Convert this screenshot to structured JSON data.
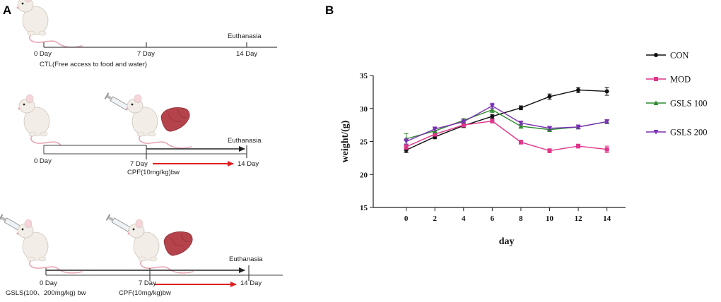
{
  "panels": {
    "a_label": "A",
    "b_label": "B"
  },
  "timeline1": {
    "start_label": "0 Day",
    "mid_label": "7 Day",
    "end_label": "14 Day",
    "event_label": "Euthanasia",
    "caption": "CTL(Free access to food and water)"
  },
  "timeline2": {
    "start_label": "0 Day",
    "mid_label": "7 Day",
    "end_label": "14 Day",
    "event_label": "Euthanasia",
    "treatment": "CPF(10mg/kg)bw"
  },
  "timeline3": {
    "start_label": "0 Day",
    "mid_label": "7 Day",
    "end_label": "14 Day",
    "event_label": "Euthanasia",
    "pretreatment": "GSLS(100、200mg/kg) bw",
    "treatment": "CPF(10mg/kg)bw"
  },
  "colors": {
    "con": "#111111",
    "mod": "#e0368a",
    "gsls100": "#2e8b2e",
    "gsls200": "#7a2fb5",
    "arrow_red": "#e02020",
    "timeline": "#444444",
    "mouse": "#f2ede6",
    "tail": "#e8a6b4",
    "liver": "#b5434b"
  },
  "chart_data": {
    "type": "line",
    "title": "",
    "xlabel": "day",
    "ylabel": "weight/(g)",
    "x": [
      0,
      2,
      4,
      6,
      8,
      10,
      12,
      14
    ],
    "xlim": [
      -2.3,
      15.3
    ],
    "ylim": [
      15,
      35
    ],
    "xticks": [
      0,
      2,
      4,
      6,
      8,
      10,
      12,
      14
    ],
    "yticks": [
      15,
      20,
      25,
      30,
      35
    ],
    "grid": false,
    "legend_position": "right",
    "series": [
      {
        "name": "CON",
        "marker": "circle",
        "color": "#111111",
        "values": [
          23.7,
          25.7,
          27.4,
          28.8,
          30.1,
          31.8,
          32.8,
          32.6
        ],
        "errors": [
          0.4,
          0.3,
          0.3,
          0.3,
          0.3,
          0.4,
          0.4,
          0.6
        ]
      },
      {
        "name": "MOD",
        "marker": "square",
        "color": "#e0368a",
        "values": [
          24.2,
          26.1,
          27.5,
          28.1,
          24.9,
          23.6,
          24.3,
          23.8
        ],
        "errors": [
          0.4,
          0.3,
          0.3,
          0.3,
          0.3,
          0.3,
          0.3,
          0.5
        ]
      },
      {
        "name": "GSLS 100",
        "marker": "triangle",
        "color": "#2e8b2e",
        "values": [
          25.4,
          26.6,
          28.2,
          29.8,
          27.3,
          26.8,
          27.2,
          28.0
        ],
        "errors": [
          0.8,
          0.3,
          0.3,
          0.4,
          0.3,
          0.3,
          0.3,
          0.3
        ]
      },
      {
        "name": "GSLS 200",
        "marker": "triangle-down",
        "color": "#7a2fb5",
        "values": [
          25.0,
          26.9,
          28.0,
          30.4,
          27.8,
          27.0,
          27.2,
          28.0
        ],
        "errors": [
          0.4,
          0.3,
          0.3,
          0.4,
          0.3,
          0.3,
          0.3,
          0.3
        ]
      }
    ]
  }
}
